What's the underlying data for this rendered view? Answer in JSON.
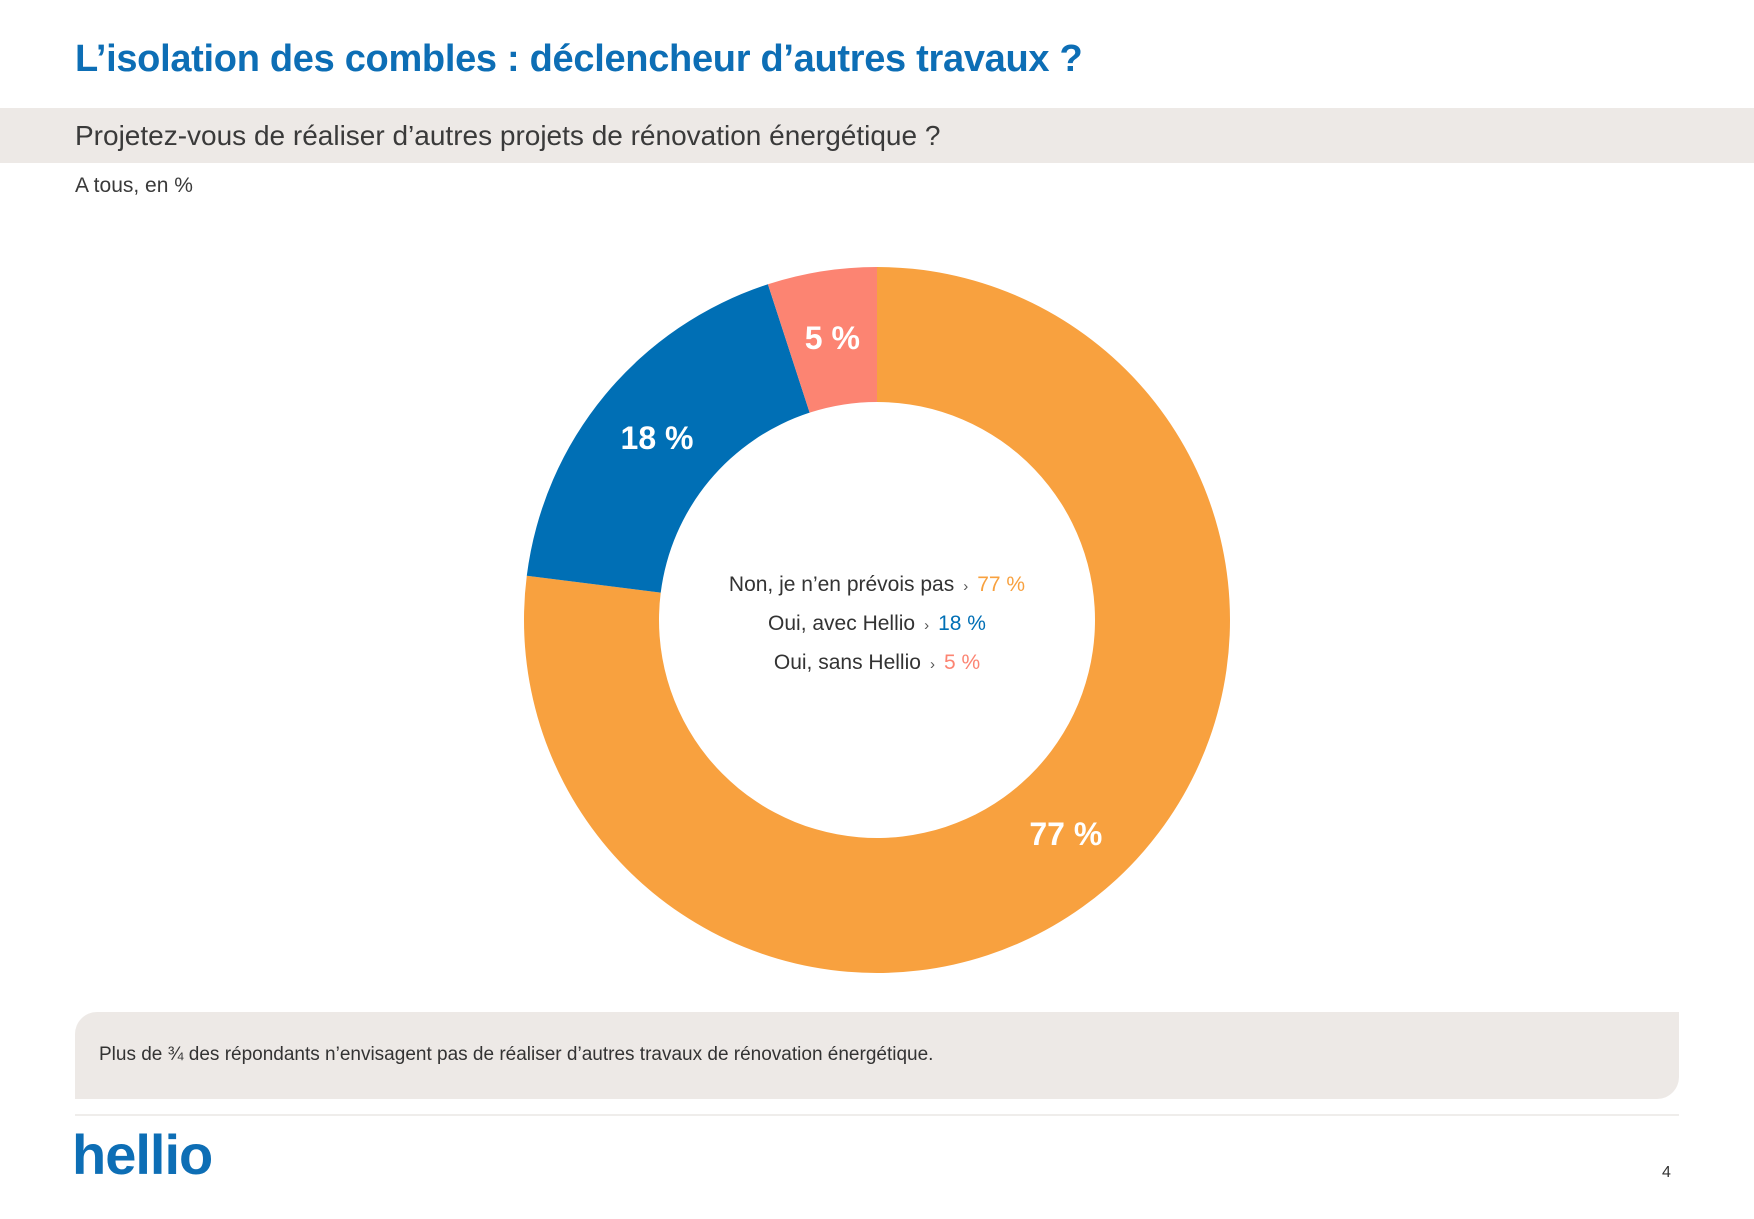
{
  "slide": {
    "title": "L’isolation des combles : déclencheur d’autres travaux ?",
    "question": "Projetez-vous de réaliser d’autres projets de rénovation énergétique ?",
    "base": "A tous, en %",
    "takeaway": "Plus de ¾ des répondants n’envisagent pas de réaliser d’autres travaux de rénovation énergétique.",
    "logo": "hellio",
    "page_number": "4"
  },
  "chart_data": {
    "type": "pie",
    "style": "donut",
    "series": [
      {
        "name": "Non, je n’en prévois pas",
        "value": 77,
        "label": "77 %",
        "color": "#f8a13f"
      },
      {
        "name": "Oui, avec Hellio",
        "value": 18,
        "label": "18 %",
        "color": "#006fb5"
      },
      {
        "name": "Oui, sans Hellio",
        "value": 5,
        "label": "5 %",
        "color": "#fc8472"
      }
    ],
    "legend_arrow": "›",
    "legend_placement": "center"
  }
}
